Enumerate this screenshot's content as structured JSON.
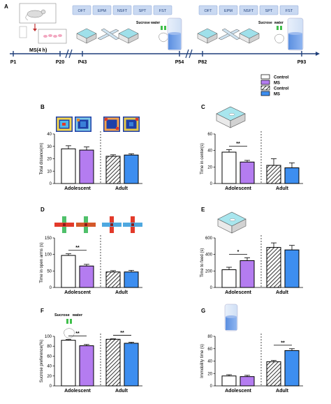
{
  "figure": {
    "panel_a": {
      "letter": "A",
      "tests_adolescent": [
        "OFT",
        "EPM",
        "NSFT",
        "SPT",
        "FST"
      ],
      "tests_adult": [
        "OFT",
        "EPM",
        "NSFT",
        "SPT",
        "FST"
      ],
      "timeline_points": [
        "P1",
        "P20",
        "P43",
        "P54",
        "P82",
        "P93"
      ],
      "ms_label": "MS(4 h)",
      "sucrose_label_1": "Sucrose water",
      "sucrose_label_2_left": "Sucrose",
      "sucrose_label_2_right": "water"
    },
    "legend": {
      "items": [
        {
          "label": "Control",
          "style": "white"
        },
        {
          "label": "MS",
          "style": "purple"
        },
        {
          "label": "Control",
          "style": "hatched"
        },
        {
          "label": "MS",
          "style": "blue"
        }
      ]
    },
    "colors": {
      "purple": "#b47cf0",
      "blue": "#3d8ef0",
      "white": "#ffffff",
      "hatch": "#555555",
      "test_box": "#c9d9f2"
    }
  },
  "chart_data": [
    {
      "panel": "B",
      "type": "bar",
      "ylabel": "Total distance(m)",
      "ylim": [
        0,
        40
      ],
      "yticks": [
        0,
        10,
        20,
        30,
        40
      ],
      "groups": [
        "Adolescent",
        "Adult"
      ],
      "series": [
        {
          "name": "Control",
          "group": "Adolescent",
          "value": 28,
          "err": 2.5
        },
        {
          "name": "MS",
          "group": "Adolescent",
          "value": 27,
          "err": 2.5
        },
        {
          "name": "Control",
          "group": "Adult",
          "value": 22,
          "err": 1.2
        },
        {
          "name": "MS",
          "group": "Adult",
          "value": 23,
          "err": 1.0
        }
      ],
      "significance": []
    },
    {
      "panel": "C",
      "type": "bar",
      "ylabel": "Time in center(s)",
      "ylim": [
        0,
        60
      ],
      "yticks": [
        0,
        20,
        40,
        60
      ],
      "groups": [
        "Adolescent",
        "Adult"
      ],
      "series": [
        {
          "name": "Control",
          "group": "Adolescent",
          "value": 38,
          "err": 3
        },
        {
          "name": "MS",
          "group": "Adolescent",
          "value": 26,
          "err": 2
        },
        {
          "name": "Control",
          "group": "Adult",
          "value": 22,
          "err": 8
        },
        {
          "name": "MS",
          "group": "Adult",
          "value": 19,
          "err": 6
        }
      ],
      "significance": [
        {
          "between": [
            0,
            1
          ],
          "label": "**"
        }
      ]
    },
    {
      "panel": "D",
      "type": "bar",
      "ylabel": "Time in open arms (s)",
      "ylim": [
        0,
        150
      ],
      "yticks": [
        0,
        50,
        100,
        150
      ],
      "groups": [
        "Adolescent",
        "Adult"
      ],
      "series": [
        {
          "name": "Control",
          "group": "Adolescent",
          "value": 97,
          "err": 5
        },
        {
          "name": "MS",
          "group": "Adolescent",
          "value": 65,
          "err": 5
        },
        {
          "name": "Control",
          "group": "Adult",
          "value": 47,
          "err": 4
        },
        {
          "name": "MS",
          "group": "Adult",
          "value": 47,
          "err": 5
        }
      ],
      "significance": [
        {
          "between": [
            0,
            1
          ],
          "label": "**"
        }
      ]
    },
    {
      "panel": "E",
      "type": "bar",
      "ylabel": "Time to feed (s)",
      "ylim": [
        0,
        600
      ],
      "yticks": [
        0,
        200,
        400,
        600
      ],
      "groups": [
        "Adolescent",
        "Adult"
      ],
      "series": [
        {
          "name": "Control",
          "group": "Adolescent",
          "value": 215,
          "err": 30
        },
        {
          "name": "MS",
          "group": "Adolescent",
          "value": 325,
          "err": 35
        },
        {
          "name": "Control",
          "group": "Adult",
          "value": 485,
          "err": 55
        },
        {
          "name": "MS",
          "group": "Adult",
          "value": 455,
          "err": 55
        }
      ],
      "significance": [
        {
          "between": [
            0,
            1
          ],
          "label": "*"
        }
      ]
    },
    {
      "panel": "F",
      "type": "bar",
      "ylabel": "Sucrose preference(%)",
      "ylim": [
        0,
        100
      ],
      "yticks": [
        0,
        20,
        40,
        60,
        80,
        100
      ],
      "groups": [
        "Adolescent",
        "Adult"
      ],
      "series": [
        {
          "name": "Control",
          "group": "Adolescent",
          "value": 92,
          "err": 1.5
        },
        {
          "name": "MS",
          "group": "Adolescent",
          "value": 81,
          "err": 2.5
        },
        {
          "name": "Control",
          "group": "Adult",
          "value": 94,
          "err": 1.0
        },
        {
          "name": "MS",
          "group": "Adult",
          "value": 86,
          "err": 2.0
        }
      ],
      "significance": [
        {
          "between": [
            0,
            1
          ],
          "label": "**"
        },
        {
          "between": [
            2,
            3
          ],
          "label": "**"
        }
      ]
    },
    {
      "panel": "G",
      "type": "bar",
      "ylabel": "Immobility time (s)",
      "ylim": [
        0,
        80
      ],
      "yticks": [
        0,
        20,
        40,
        60,
        80
      ],
      "groups": [
        "Adolescent",
        "Adult"
      ],
      "series": [
        {
          "name": "Control",
          "group": "Adolescent",
          "value": 16,
          "err": 2
        },
        {
          "name": "MS",
          "group": "Adolescent",
          "value": 15,
          "err": 2
        },
        {
          "name": "Control",
          "group": "Adult",
          "value": 39,
          "err": 2
        },
        {
          "name": "MS",
          "group": "Adult",
          "value": 57,
          "err": 3
        }
      ],
      "significance": [
        {
          "between": [
            2,
            3
          ],
          "label": "**"
        }
      ]
    }
  ]
}
